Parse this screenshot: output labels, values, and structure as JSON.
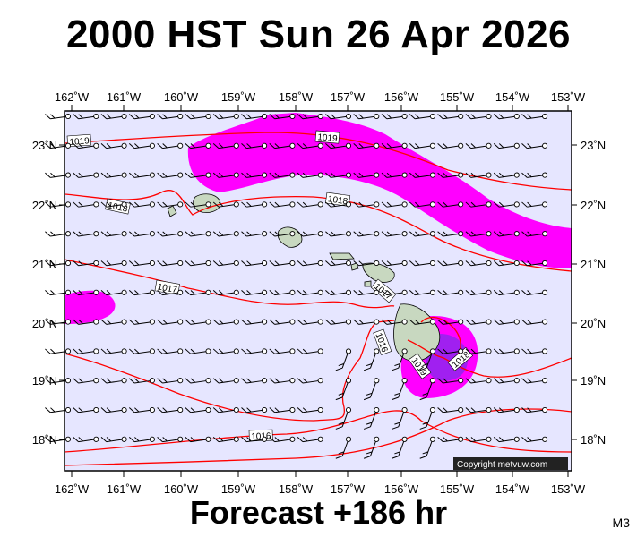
{
  "title": "2000 HST Sun 26 Apr 2026",
  "subtitle": "Forecast +186 hr",
  "model_label": "M3",
  "copyright": "Copyright metvuw.com",
  "colors": {
    "ocean": "#e6e6ff",
    "precip_light": "#ff00ff",
    "precip_heavy": "#a020f0",
    "isobar": "#ff0000",
    "land": "#c8d8c0"
  },
  "axes": {
    "lon_labels": [
      "162˚W",
      "161˚W",
      "160˚W",
      "159˚W",
      "158˚W",
      "157˚W",
      "156˚W",
      "155˚W",
      "154˚W",
      "153˚W"
    ],
    "lat_labels": [
      "23˚N",
      "22˚N",
      "21˚N",
      "20˚N",
      "19˚N",
      "18˚N"
    ]
  },
  "isobar_labels": [
    "1019",
    "1019",
    "1018",
    "1018",
    "1017",
    "1017",
    "1016",
    "1016",
    "1019",
    "1018"
  ]
}
